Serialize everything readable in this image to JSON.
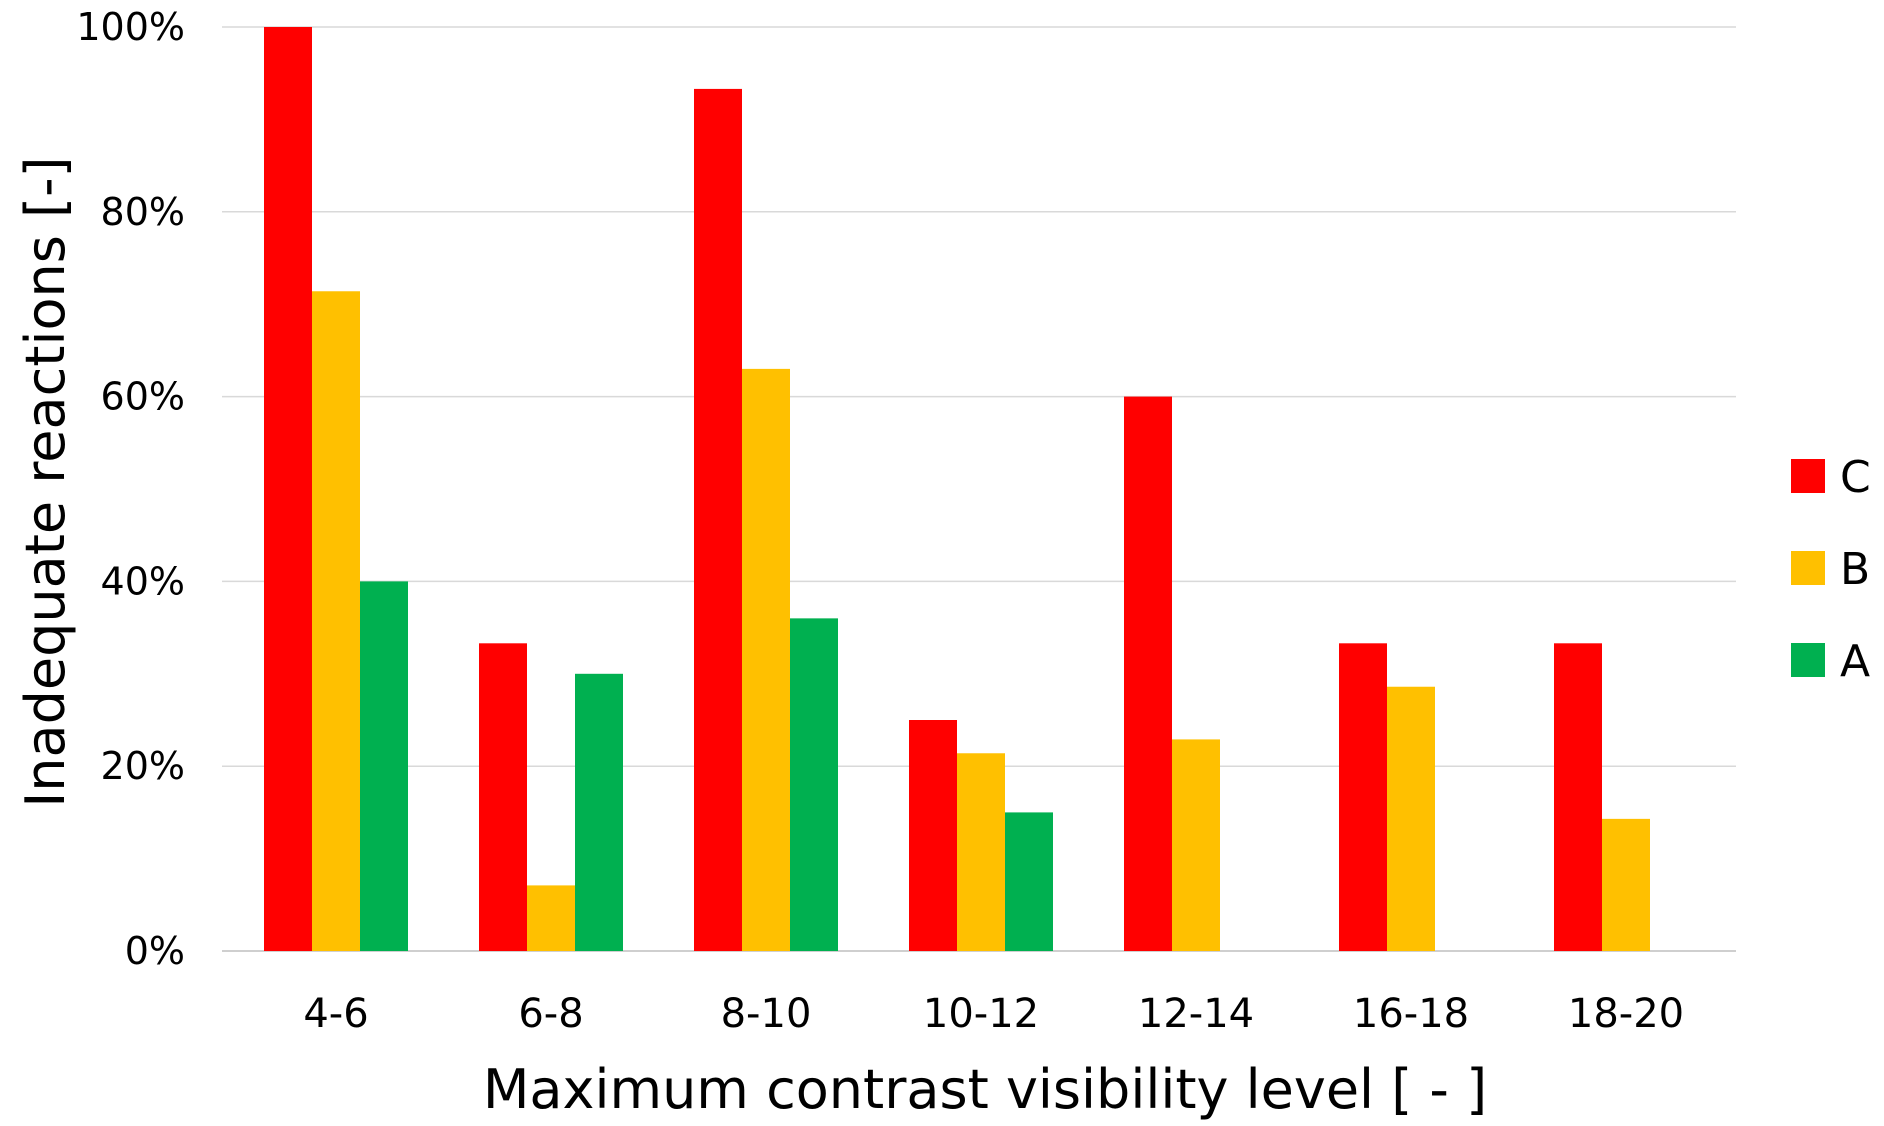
{
  "chart_data": {
    "type": "bar",
    "title": "",
    "xlabel": "Maximum contrast visibility level  [ - ]",
    "ylabel": "Inadequate reactions  [-]",
    "categories": [
      "4-6",
      "6-8",
      "8-10",
      "10-12",
      "12-14",
      "16-18",
      "18-20"
    ],
    "series": [
      {
        "name": "C",
        "color": "#ff0000",
        "values": [
          100,
          33.3,
          93.3,
          25,
          60,
          33.3,
          33.3
        ]
      },
      {
        "name": "B",
        "color": "#ffc000",
        "values": [
          71.4,
          7.1,
          63,
          21.4,
          22.9,
          28.6,
          14.3
        ]
      },
      {
        "name": "A",
        "color": "#00b050",
        "values": [
          40,
          30,
          36,
          15,
          0,
          0,
          0
        ]
      }
    ],
    "ylim": [
      0,
      100
    ],
    "yticks": [
      "0%",
      "20%",
      "40%",
      "60%",
      "80%",
      "100%"
    ],
    "ytick_values": [
      0,
      20,
      40,
      60,
      80,
      100
    ],
    "grid": true,
    "legend_position": "right",
    "legend_order": [
      "C",
      "B",
      "A"
    ]
  }
}
